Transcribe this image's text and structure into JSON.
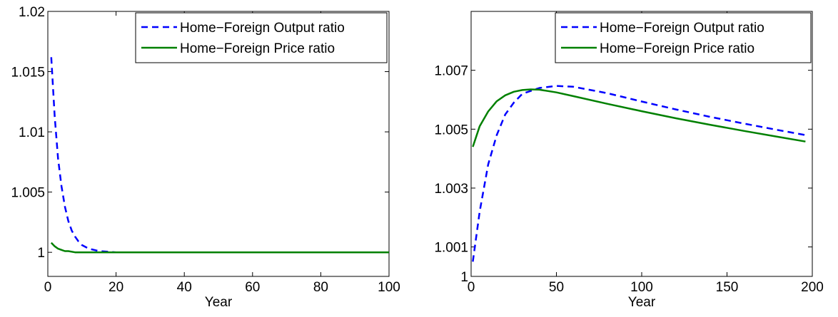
{
  "chart_data": [
    {
      "type": "line",
      "xlabel": "Year",
      "ylabel": "",
      "xlim": [
        0,
        100
      ],
      "ylim": [
        0.998,
        1.02
      ],
      "xticks": [
        0,
        20,
        40,
        60,
        80,
        100
      ],
      "xtick_labels": [
        "0",
        "20",
        "40",
        "60",
        "80",
        "100"
      ],
      "yticks": [
        1.0,
        1.005,
        1.01,
        1.015,
        1.02
      ],
      "ytick_labels": [
        "1",
        "1.005",
        "1.01",
        "1.015",
        "1.02"
      ],
      "grid": false,
      "legend_position": "top-right",
      "series": [
        {
          "name": "Home−Foreign Output ratio",
          "color": "#0000ff",
          "style": "dashed",
          "x": [
            1,
            2,
            3,
            4,
            5,
            6,
            7,
            8,
            9,
            10,
            12,
            15,
            20,
            30,
            40,
            50,
            60,
            70,
            80,
            90,
            100
          ],
          "y": [
            1.0162,
            1.0113,
            1.0078,
            1.0055,
            1.0038,
            1.0026,
            1.0018,
            1.0013,
            1.0009,
            1.0006,
            1.0003,
            1.0001,
            1.0,
            1.0,
            1.0,
            1.0,
            1.0,
            1.0,
            1.0,
            1.0,
            1.0
          ]
        },
        {
          "name": "Home−Foreign Price ratio",
          "color": "#008000",
          "style": "solid",
          "x": [
            1,
            2,
            3,
            4,
            5,
            6,
            8,
            10,
            15,
            20,
            30,
            40,
            50,
            60,
            70,
            80,
            90,
            100
          ],
          "y": [
            1.0008,
            1.0005,
            1.0003,
            1.0002,
            1.0001,
            1.0001,
            1.0,
            1.0,
            1.0,
            1.0,
            1.0,
            1.0,
            1.0,
            1.0,
            1.0,
            1.0,
            1.0,
            1.0
          ]
        }
      ]
    },
    {
      "type": "line",
      "xlabel": "Year",
      "ylabel": "",
      "xlim": [
        0,
        200
      ],
      "ylim": [
        1.0,
        1.009
      ],
      "xticks": [
        0,
        50,
        100,
        150,
        200
      ],
      "xtick_labels": [
        "0",
        "50",
        "100",
        "150",
        "200"
      ],
      "yticks": [
        1.0,
        1.001,
        1.003,
        1.005,
        1.007
      ],
      "ytick_labels": [
        "1",
        "1.001",
        "1.003",
        "1.005",
        "1.007"
      ],
      "grid": false,
      "legend_position": "top-right",
      "series": [
        {
          "name": "Home−Foreign Output ratio",
          "color": "#0000ff",
          "style": "dashed",
          "x": [
            1,
            5,
            10,
            15,
            20,
            25,
            30,
            40,
            50,
            60,
            80,
            100,
            120,
            140,
            160,
            180,
            196
          ],
          "y": [
            1.0005,
            1.0022,
            1.0038,
            1.0048,
            1.0055,
            1.0059,
            1.0062,
            1.0064,
            1.00647,
            1.00644,
            1.00622,
            1.00594,
            1.00567,
            1.00542,
            1.00519,
            1.00497,
            1.0048
          ]
        },
        {
          "name": "Home−Foreign Price ratio",
          "color": "#008000",
          "style": "solid",
          "x": [
            1,
            5,
            10,
            15,
            20,
            25,
            30,
            35,
            40,
            50,
            60,
            80,
            100,
            120,
            140,
            160,
            180,
            196
          ],
          "y": [
            1.0044,
            1.0051,
            1.0056,
            1.00595,
            1.00615,
            1.00627,
            1.00633,
            1.00635,
            1.00634,
            1.00625,
            1.00612,
            1.00586,
            1.00561,
            1.00537,
            1.00515,
            1.00494,
            1.00474,
            1.00458
          ]
        }
      ]
    }
  ]
}
